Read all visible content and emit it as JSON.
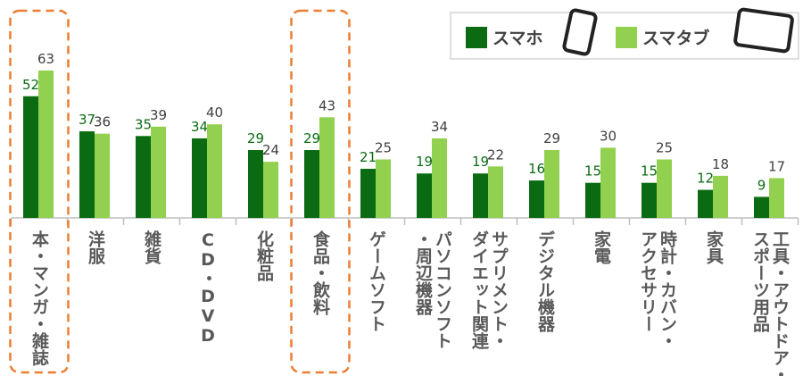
{
  "chart_data": {
    "type": "bar",
    "categories": [
      "本・マンガ・雑誌",
      "洋服",
      "雑貨",
      "CD・DVD",
      "化粧品",
      "食品・飲料",
      "ゲームソフト",
      "パソコンソフト\n・周辺機器",
      "サプリメント・\nダイエット関連",
      "デジタル機器",
      "家電",
      "時計・カバン・\nアクセサリー",
      "家具",
      "工具・アウトドア・\nスポーツ用品"
    ],
    "series": [
      {
        "name": "スマホ",
        "color": "#0b6b12",
        "label_color": "#0b6b12",
        "values": [
          52,
          37,
          35,
          34,
          29,
          29,
          21,
          19,
          19,
          16,
          15,
          15,
          12,
          9
        ]
      },
      {
        "name": "スマタブ",
        "color": "#92d050",
        "label_color": "#404040",
        "values": [
          63,
          36,
          39,
          40,
          24,
          43,
          25,
          34,
          22,
          29,
          30,
          25,
          18,
          17
        ]
      }
    ],
    "highlight": [
      0,
      5
    ],
    "highlight_color": "#ed7d31"
  }
}
